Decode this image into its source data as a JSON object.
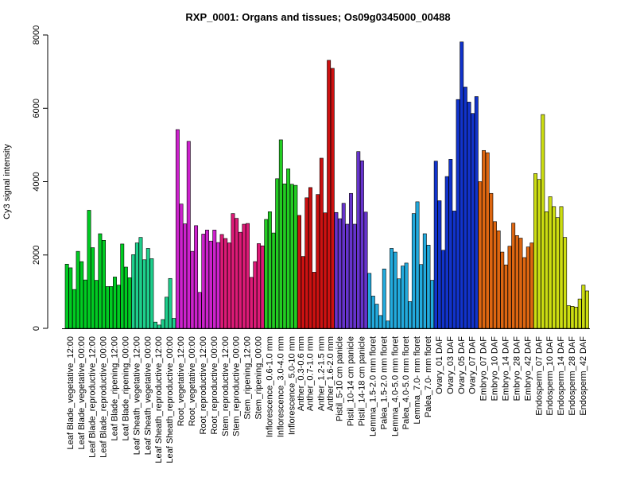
{
  "chart_data": {
    "type": "bar",
    "title": "RXP_0001: Organs and tissues; Os09g0345000_00488",
    "xlabel": "",
    "ylabel": "Cy3 signal intensity",
    "ylim": [
      0,
      8000
    ],
    "yticks": [
      0,
      2000,
      4000,
      6000,
      8000
    ],
    "grid": false,
    "legend": "none",
    "groups": [
      {
        "label": "Leaf Blade_vegetative_12:00",
        "color": "#00cc22",
        "values": [
          1750,
          1650,
          1060
        ]
      },
      {
        "label": "Leaf Blade_vegetative_00:00",
        "color": "#00cc22",
        "values": [
          2100,
          1820,
          1320
        ]
      },
      {
        "label": "Leaf Blade_reproductive_12:00",
        "color": "#00cc22",
        "values": [
          3220,
          2200,
          1310
        ]
      },
      {
        "label": "Leaf Blade_reproductive_00:00",
        "color": "#00cc22",
        "values": [
          2580,
          2400,
          1140
        ]
      },
      {
        "label": "Leaf Blade_ripening_12:00",
        "color": "#00cc22",
        "values": [
          1140,
          1400,
          1180
        ]
      },
      {
        "label": "Leaf Blade_ripening_00:00",
        "color": "#00cc22",
        "values": [
          2300,
          1670,
          1380
        ]
      },
      {
        "label": "Leaf Sheath_vegetative_12:00",
        "color": "#1ecf8c",
        "values": [
          2010,
          2330,
          2480
        ]
      },
      {
        "label": "Leaf Sheath_vegetative_00:00",
        "color": "#1ecf8c",
        "values": [
          1870,
          2180,
          1900
        ]
      },
      {
        "label": "Leaf Sheath_reproductive_12:00",
        "color": "#1ecf8c",
        "values": [
          170,
          90,
          240
        ]
      },
      {
        "label": "Leaf Sheath_reproductive_00:00",
        "color": "#1ecf8c",
        "values": [
          850,
          1360,
          270
        ]
      },
      {
        "label": "Root_vegetative_12:00",
        "color": "#cc22cc",
        "values": [
          5420,
          3390,
          2850
        ]
      },
      {
        "label": "Root_vegetative_00:00",
        "color": "#cc22cc",
        "values": [
          5100,
          2100,
          2800
        ]
      },
      {
        "label": "Root_reproductive_12:00",
        "color": "#cc22cc",
        "values": [
          980,
          2570,
          2680
        ]
      },
      {
        "label": "Root_reproductive_00:00",
        "color": "#cc22cc",
        "values": [
          2380,
          2680,
          2340
        ]
      },
      {
        "label": "Stem_reproductive_12:00",
        "color": "#dd1a77",
        "values": [
          2560,
          2450,
          2330
        ]
      },
      {
        "label": "Stem_reproductive_00:00",
        "color": "#dd1a77",
        "values": [
          3130,
          3000,
          2620
        ]
      },
      {
        "label": "Stem_ripening_12:00",
        "color": "#dd1a77",
        "values": [
          2840,
          2860,
          1390
        ]
      },
      {
        "label": "Stem_ripening_00:00",
        "color": "#dd1a77",
        "values": [
          1820,
          2310,
          2250
        ]
      },
      {
        "label": "Inflorescence_0.6-1.0 mm",
        "color": "#22cc22",
        "values": [
          2970,
          3180,
          2600
        ]
      },
      {
        "label": "Inflorescence_3.0-4.0 mm",
        "color": "#22cc22",
        "values": [
          4080,
          5140,
          3940
        ]
      },
      {
        "label": "Inflorescence_5.0-10 mm",
        "color": "#22cc22",
        "values": [
          4350,
          3930,
          3900
        ]
      },
      {
        "label": "Anther_0.3-0.6 mm",
        "color": "#cc1111",
        "values": [
          3080,
          1960
        ]
      },
      {
        "label": "Anther_0.7-1.0 mm",
        "color": "#cc1111",
        "values": [
          3560,
          3840,
          1530
        ]
      },
      {
        "label": "Anther_1.2-1.5 mm",
        "color": "#cc1111",
        "values": [
          3650,
          4640,
          3150
        ]
      },
      {
        "label": "Anther_1.6-2.0 mm",
        "color": "#cc1111",
        "values": [
          7310,
          7090
        ]
      },
      {
        "label": "Pistil_5-10 cm panicle",
        "color": "#6633cc",
        "values": [
          3160,
          2990,
          3410
        ]
      },
      {
        "label": "Pistil_10-14 cm panicle",
        "color": "#6633cc",
        "values": [
          2840,
          3680,
          2840
        ]
      },
      {
        "label": "Pistil_14-18 cm panicle",
        "color": "#6633cc",
        "values": [
          4820,
          4570,
          3170
        ]
      },
      {
        "label": "Lemma_1.5-2.0 mm floret",
        "color": "#22aadd",
        "values": [
          1500,
          880,
          660
        ]
      },
      {
        "label": "Palea_1.5-2.0 mm floret",
        "color": "#22aadd",
        "values": [
          350,
          1620,
          200
        ]
      },
      {
        "label": "Lemma_4.0-5.0 mm floret",
        "color": "#22aadd",
        "values": [
          2180,
          2080,
          1350
        ]
      },
      {
        "label": "Palea_4.0-5.0 mm floret",
        "color": "#22aadd",
        "values": [
          1700,
          1780,
          730
        ]
      },
      {
        "label": "Lemma_7.0- mm floret",
        "color": "#22aadd",
        "values": [
          3130,
          3450,
          1740
        ]
      },
      {
        "label": "Palea_7.0- mm floret",
        "color": "#22aadd",
        "values": [
          2580,
          2270,
          1310
        ]
      },
      {
        "label": "Ovary_01 DAF",
        "color": "#1133cc",
        "values": [
          4560,
          3480,
          2130
        ]
      },
      {
        "label": "Ovary_03 DAF",
        "color": "#1133cc",
        "values": [
          4140,
          4610,
          3200
        ]
      },
      {
        "label": "Ovary_05 DAF",
        "color": "#1133cc",
        "values": [
          6240,
          7810,
          6580
        ]
      },
      {
        "label": "Ovary_07 DAF",
        "color": "#1133cc",
        "values": [
          6170,
          5860,
          6320
        ]
      },
      {
        "label": "Embryo_07 DAF",
        "color": "#dd6611",
        "values": [
          4000,
          4850,
          4790
        ]
      },
      {
        "label": "Embryo_10 DAF",
        "color": "#dd6611",
        "values": [
          3680,
          2910,
          2660
        ]
      },
      {
        "label": "Embryo_14 DAF",
        "color": "#dd6611",
        "values": [
          2080,
          1730,
          2240
        ]
      },
      {
        "label": "Embryo_28 DAF",
        "color": "#dd6611",
        "values": [
          2870,
          2530,
          2460
        ]
      },
      {
        "label": "Embryo_42 DAF",
        "color": "#dd6611",
        "values": [
          1930,
          2220,
          2330
        ]
      },
      {
        "label": "Endosperm_07 DAF",
        "color": "#ccdd11",
        "values": [
          4220,
          4060,
          5830
        ]
      },
      {
        "label": "Endosperm_10 DAF",
        "color": "#ccdd11",
        "values": [
          3180,
          3590,
          3320
        ]
      },
      {
        "label": "Endosperm_14 DAF",
        "color": "#ccdd11",
        "values": [
          3020,
          3320,
          2480
        ]
      },
      {
        "label": "Endosperm_28 DAF",
        "color": "#ccdd11",
        "values": [
          620,
          600,
          580
        ]
      },
      {
        "label": "Endosperm_42 DAF",
        "color": "#ccdd11",
        "values": [
          800,
          1180,
          1020
        ]
      }
    ]
  }
}
